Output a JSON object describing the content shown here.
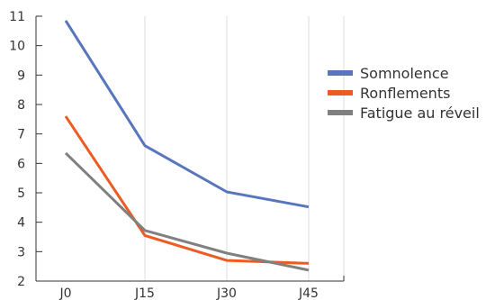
{
  "chart_data": {
    "type": "line",
    "categories": [
      "J0",
      "J15",
      "J30",
      "J45"
    ],
    "y_ticks": [
      "2",
      "3",
      "4",
      "5",
      "6",
      "7",
      "8",
      "9",
      "10",
      "11"
    ],
    "ylim": [
      2,
      11
    ],
    "grid": "vertical",
    "legend_position": "right",
    "series": [
      {
        "name": "Somnolence",
        "color": "#5875bd",
        "values": [
          10.85,
          6.6,
          5.03,
          4.52
        ]
      },
      {
        "name": "Ronflements",
        "color": "#ef5a23",
        "values": [
          7.6,
          3.55,
          2.7,
          2.6
        ]
      },
      {
        "name": "Fatigue au réveil",
        "color": "#808080",
        "values": [
          6.35,
          3.72,
          2.95,
          2.37
        ]
      }
    ]
  }
}
